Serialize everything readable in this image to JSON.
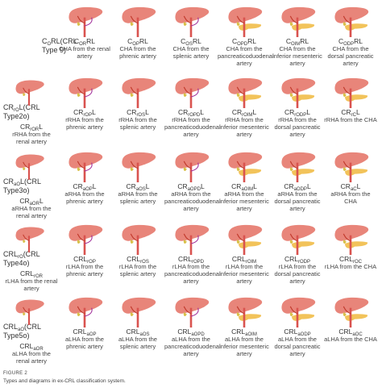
{
  "rows": [
    {
      "label": [
        {
          "text": "C"
        },
        {
          "text": "O",
          "sub": true
        },
        {
          "text": "RL(CRL Type 9)"
        }
      ],
      "cells": [
        {
          "code": [
            {
              "text": "C"
            },
            {
              "text": "OR",
              "sub": true
            },
            {
              "text": "RL"
            }
          ],
          "desc": "CHA from the renal artery"
        },
        {
          "code": [
            {
              "text": "C"
            },
            {
              "text": "OP",
              "sub": true
            },
            {
              "text": "RL"
            }
          ],
          "desc": "CHA from the phrenic artery"
        },
        {
          "code": [
            {
              "text": "C"
            },
            {
              "text": "OS",
              "sub": true
            },
            {
              "text": "RL"
            }
          ],
          "desc": "CHA from the splenic artery"
        },
        {
          "code": [
            {
              "text": "C"
            },
            {
              "text": "OPD",
              "sub": true
            },
            {
              "text": "RL"
            }
          ],
          "desc": "CHA from the pancreaticoduodenal artery"
        },
        {
          "code": [
            {
              "text": "C"
            },
            {
              "text": "OIM",
              "sub": true
            },
            {
              "text": "RL"
            }
          ],
          "desc": "CHA from the inferior mesenteric artery"
        },
        {
          "code": [
            {
              "text": "C"
            },
            {
              "text": "ODP",
              "sub": true
            },
            {
              "text": "RL"
            }
          ],
          "desc": "CHA from the dorsal pancreatic artery"
        }
      ]
    },
    {
      "label": [
        {
          "text": "CR"
        },
        {
          "text": "rO",
          "sub": true
        },
        {
          "text": "L(CRL Type2o)"
        }
      ],
      "cells": [
        {
          "code": [
            {
              "text": "CR"
            },
            {
              "text": "rOR",
              "sub": true
            },
            {
              "text": "L"
            }
          ],
          "desc": "rRHA from the renal artery"
        },
        {
          "code": [
            {
              "text": "CR"
            },
            {
              "text": "rOP",
              "sub": true
            },
            {
              "text": "L"
            }
          ],
          "desc": "rRHA from the phrenic artery"
        },
        {
          "code": [
            {
              "text": "CR"
            },
            {
              "text": "rOS",
              "sub": true
            },
            {
              "text": "L"
            }
          ],
          "desc": "rRHA from the splenic artery"
        },
        {
          "code": [
            {
              "text": "CR"
            },
            {
              "text": "rOPD",
              "sub": true
            },
            {
              "text": "L"
            }
          ],
          "desc": "rRHA from the pancreaticoduodenal artery"
        },
        {
          "code": [
            {
              "text": "CR"
            },
            {
              "text": "rOIM",
              "sub": true
            },
            {
              "text": "L"
            }
          ],
          "desc": "rRHA from the inferior mesenteric artery"
        },
        {
          "code": [
            {
              "text": "CR"
            },
            {
              "text": "rODP",
              "sub": true
            },
            {
              "text": "L"
            }
          ],
          "desc": "rRHA from the dorsal pancreatic artery"
        },
        {
          "code": [
            {
              "text": "CR"
            },
            {
              "text": "rC",
              "sub": true
            },
            {
              "text": "L"
            }
          ],
          "desc": "rRHA from the CHA"
        }
      ]
    },
    {
      "label": [
        {
          "text": "CR"
        },
        {
          "text": "aO",
          "sub": true
        },
        {
          "text": "L(CRL Type3o)"
        }
      ],
      "cells": [
        {
          "code": [
            {
              "text": "CR"
            },
            {
              "text": "aOR",
              "sub": true
            },
            {
              "text": "L"
            }
          ],
          "desc": "aRHA from the renal artery"
        },
        {
          "code": [
            {
              "text": "CR"
            },
            {
              "text": "aOP",
              "sub": true
            },
            {
              "text": "L"
            }
          ],
          "desc": "aRHA from the phrenic artery"
        },
        {
          "code": [
            {
              "text": "CR"
            },
            {
              "text": "aOS",
              "sub": true
            },
            {
              "text": "L"
            }
          ],
          "desc": "aRHA from the splenic artery"
        },
        {
          "code": [
            {
              "text": "CR"
            },
            {
              "text": "aOPD",
              "sub": true
            },
            {
              "text": "L"
            }
          ],
          "desc": "aRHA from the pancreaticoduodenal artery"
        },
        {
          "code": [
            {
              "text": "CR"
            },
            {
              "text": "aOIM",
              "sub": true
            },
            {
              "text": "L"
            }
          ],
          "desc": "aRHA from the inferior mesenteric artery"
        },
        {
          "code": [
            {
              "text": "CR"
            },
            {
              "text": "aODP",
              "sub": true
            },
            {
              "text": "L"
            }
          ],
          "desc": "aRHA from the dorsal pancreatic artery"
        },
        {
          "code": [
            {
              "text": "CR"
            },
            {
              "text": "aC",
              "sub": true
            },
            {
              "text": "L"
            }
          ],
          "desc": "aRHA from the CHA"
        }
      ]
    },
    {
      "label": [
        {
          "text": "CRL"
        },
        {
          "text": "rO",
          "sub": true
        },
        {
          "text": "(CRL Type4o)"
        }
      ],
      "cells": [
        {
          "code": [
            {
              "text": "CRL"
            },
            {
              "text": "rOR",
              "sub": true
            }
          ],
          "desc": "rLHA from the renal artery"
        },
        {
          "code": [
            {
              "text": "CRL"
            },
            {
              "text": "rOP",
              "sub": true
            }
          ],
          "desc": "rLHA from the phrenic artery"
        },
        {
          "code": [
            {
              "text": "CRL"
            },
            {
              "text": "rOS",
              "sub": true
            }
          ],
          "desc": "rLHA from the splenic artery"
        },
        {
          "code": [
            {
              "text": "CRL"
            },
            {
              "text": "rOPD",
              "sub": true
            }
          ],
          "desc": "rLHA from the pancreaticoduodenal artery"
        },
        {
          "code": [
            {
              "text": "CRL"
            },
            {
              "text": "rOIM",
              "sub": true
            }
          ],
          "desc": "rLHA from the inferior mesenteric artery"
        },
        {
          "code": [
            {
              "text": "CRL"
            },
            {
              "text": "rODP",
              "sub": true
            }
          ],
          "desc": "rLHA from the dorsal pancreatic artery"
        },
        {
          "code": [
            {
              "text": "CRL"
            },
            {
              "text": "rOC",
              "sub": true
            }
          ],
          "desc": "rLHA from the CHA"
        }
      ]
    },
    {
      "label": [
        {
          "text": "CRL"
        },
        {
          "text": "aO",
          "sub": true
        },
        {
          "text": "(CRL Type5o)"
        }
      ],
      "cells": [
        {
          "code": [
            {
              "text": "CRL"
            },
            {
              "text": "aOR",
              "sub": true
            }
          ],
          "desc": "aLHA from the renal artery"
        },
        {
          "code": [
            {
              "text": "CRL"
            },
            {
              "text": "aOP",
              "sub": true
            }
          ],
          "desc": "aLHA from the phrenic artery"
        },
        {
          "code": [
            {
              "text": "CRL"
            },
            {
              "text": "aOS",
              "sub": true
            }
          ],
          "desc": "aLHA from the splenic artery"
        },
        {
          "code": [
            {
              "text": "CRL"
            },
            {
              "text": "aOPD",
              "sub": true
            }
          ],
          "desc": "aLHA from the pancreaticoduodenal artery"
        },
        {
          "code": [
            {
              "text": "CRL"
            },
            {
              "text": "aOIM",
              "sub": true
            }
          ],
          "desc": "aLHA from the inferior mesenteric artery"
        },
        {
          "code": [
            {
              "text": "CRL"
            },
            {
              "text": "aODP",
              "sub": true
            }
          ],
          "desc": "aLHA from the dorsal pancreatic artery"
        },
        {
          "code": [
            {
              "text": "CRL"
            },
            {
              "text": "aOC",
              "sub": true
            }
          ],
          "desc": "aLHA from the CHA"
        }
      ]
    }
  ],
  "caption": {
    "label": "FIGURE 2",
    "text": "Types and diagrams in ex-CRL classification system."
  }
}
